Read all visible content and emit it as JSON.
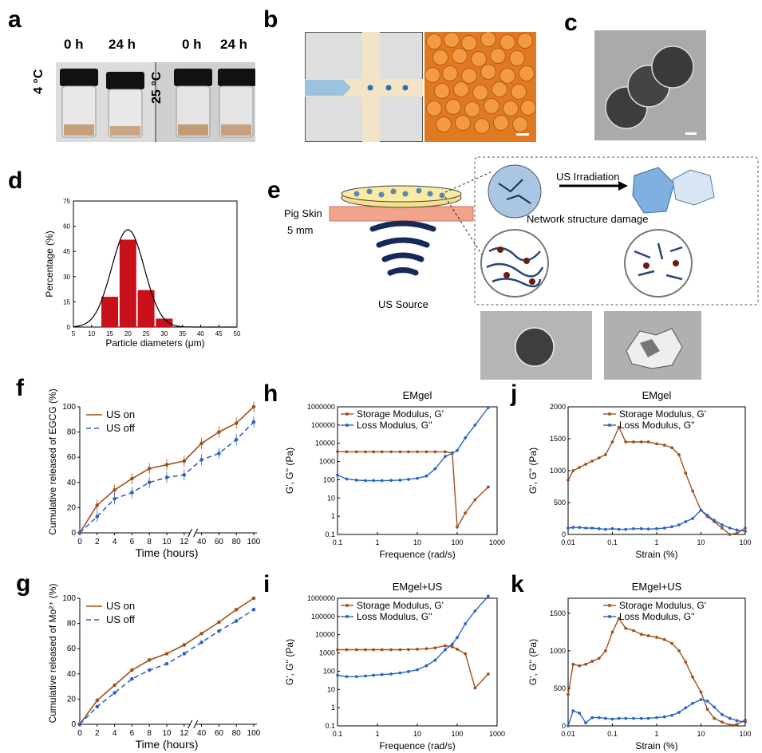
{
  "panels": {
    "a": {
      "letter": "a",
      "t0": "0 h",
      "t24": "24 h",
      "t0b": "0 h",
      "t24b": "24 h",
      "temp1": "4 °C",
      "temp2": "25 °C"
    },
    "b": {
      "letter": "b"
    },
    "c": {
      "letter": "c"
    },
    "d": {
      "letter": "d"
    },
    "e": {
      "letter": "e",
      "pig_skin": "Pig Skin",
      "depth": "5 mm",
      "us_source": "US Source",
      "irradiation": "US Irradiation",
      "damage": "Network structure damage"
    },
    "f": {
      "letter": "f"
    },
    "g": {
      "letter": "g"
    },
    "h": {
      "letter": "h"
    },
    "i": {
      "letter": "i"
    },
    "j": {
      "letter": "j"
    },
    "k": {
      "letter": "k"
    }
  },
  "chart_data": [
    {
      "id": "d",
      "type": "bar",
      "xlabel": "Particle diameters (μm)",
      "ylabel": "Percentage (%)",
      "xlim": [
        5,
        50
      ],
      "ylim": [
        0,
        75
      ],
      "xticks": [
        "5",
        "10",
        "15",
        "20",
        "25",
        "30",
        "35",
        "40",
        "45",
        "50"
      ],
      "yticks": [
        "0",
        "15",
        "30",
        "45",
        "60",
        "75"
      ],
      "categories": [
        15,
        20,
        25,
        30
      ],
      "values": [
        18,
        52,
        22,
        5
      ],
      "fit": {
        "type": "gaussian",
        "mean": 20,
        "sigma": 4.5,
        "peak": 58
      }
    },
    {
      "id": "f",
      "type": "line",
      "xlabel": "Time (hours)",
      "ylabel": "Cumulative released of EGCG (%)",
      "ylim": [
        0,
        100
      ],
      "xticks": [
        "0",
        "2",
        "4",
        "6",
        "8",
        "10",
        "12",
        "40",
        "60",
        "80",
        "100"
      ],
      "yticks": [
        "0",
        "20",
        "40",
        "60",
        "80",
        "100"
      ],
      "x": [
        0,
        2,
        4,
        6,
        8,
        10,
        12,
        40,
        60,
        80,
        100
      ],
      "series": [
        {
          "name": "US on",
          "values": [
            0,
            22,
            34,
            43,
            51,
            54,
            57,
            71,
            80,
            87,
            100
          ]
        },
        {
          "name": "US off",
          "values": [
            0,
            13,
            27,
            32,
            40,
            44,
            46,
            58,
            63,
            74,
            88
          ]
        }
      ]
    },
    {
      "id": "g",
      "type": "line",
      "xlabel": "Time (hours)",
      "ylabel": "Cumulative released of Mo²⁺ (%)",
      "ylim": [
        0,
        100
      ],
      "xticks": [
        "0",
        "2",
        "4",
        "6",
        "8",
        "10",
        "12",
        "40",
        "60",
        "80",
        "100"
      ],
      "yticks": [
        "0",
        "20",
        "40",
        "60",
        "80",
        "100"
      ],
      "x": [
        0,
        2,
        4,
        6,
        8,
        10,
        12,
        40,
        60,
        80,
        100
      ],
      "series": [
        {
          "name": "US on",
          "values": [
            0,
            19,
            31,
            43,
            51,
            56,
            63,
            72,
            81,
            91,
            100
          ]
        },
        {
          "name": "US off",
          "values": [
            0,
            14,
            25,
            36,
            43,
            48,
            56,
            65,
            74,
            82,
            91
          ]
        }
      ]
    },
    {
      "id": "h",
      "type": "line",
      "title": "EMgel",
      "xlabel": "Frequence (rad/s)",
      "ylabel": "G', G'' (Pa)",
      "xscale": "log",
      "yscale": "log",
      "xlim": [
        0.1,
        1000
      ],
      "ylim": [
        0.1,
        1000000
      ],
      "xticks": [
        "0.1",
        "1",
        "10",
        "100",
        "1000"
      ],
      "yticks": [
        "0.1",
        "1",
        "10",
        "100",
        "1000",
        "10000",
        "100000",
        "1000000"
      ],
      "x": [
        0.1,
        0.17,
        0.3,
        0.5,
        0.8,
        1.3,
        2.2,
        3.7,
        6,
        10,
        17,
        28,
        50,
        75,
        100,
        160,
        280,
        600
      ],
      "series": [
        {
          "name": "Storage Modulus, G'",
          "values": [
            3500,
            3400,
            3400,
            3400,
            3400,
            3400,
            3400,
            3400,
            3400,
            3400,
            3400,
            3400,
            3400,
            3000,
            0.25,
            1.5,
            8,
            40
          ]
        },
        {
          "name": "Loss Modulus, G''",
          "values": [
            180,
            110,
            95,
            90,
            90,
            90,
            92,
            95,
            105,
            120,
            160,
            400,
            1900,
            2800,
            4000,
            20000,
            100000,
            900000
          ]
        }
      ]
    },
    {
      "id": "i",
      "type": "line",
      "title": "EMgel+US",
      "xlabel": "Frequence (rad/s)",
      "ylabel": "G', G'' (Pa)",
      "xscale": "log",
      "yscale": "log",
      "xlim": [
        0.1,
        1000
      ],
      "ylim": [
        0.1,
        1000000
      ],
      "xticks": [
        "0.1",
        "1",
        "10",
        "100",
        "1000"
      ],
      "yticks": [
        "0.1",
        "1",
        "10",
        "100",
        "1000",
        "10000",
        "100000",
        "1000000"
      ],
      "x": [
        0.1,
        0.17,
        0.3,
        0.5,
        0.8,
        1.3,
        2.2,
        3.7,
        6,
        10,
        17,
        28,
        50,
        75,
        100,
        160,
        280,
        600
      ],
      "series": [
        {
          "name": "Storage Modulus, G'",
          "values": [
            1500,
            1500,
            1500,
            1500,
            1500,
            1500,
            1500,
            1500,
            1550,
            1600,
            1700,
            1900,
            2500,
            2200,
            1600,
            900,
            12,
            70
          ]
        },
        {
          "name": "Loss Modulus, G''",
          "values": [
            60,
            50,
            50,
            55,
            60,
            65,
            70,
            80,
            95,
            120,
            200,
            400,
            1500,
            3000,
            7000,
            40000,
            200000,
            1300000
          ]
        }
      ]
    },
    {
      "id": "j",
      "type": "line",
      "title": "EMgel",
      "xlabel": "Strain (%)",
      "ylabel": "G', G'' (Pa)",
      "xscale": "log",
      "xlim": [
        0.01,
        100
      ],
      "ylim": [
        0,
        2000
      ],
      "xticks": [
        "0.01",
        "0.1",
        "1",
        "10",
        "100"
      ],
      "yticks": [
        "0",
        "500",
        "1000",
        "1500",
        "2000"
      ],
      "x": [
        0.01,
        0.013,
        0.018,
        0.025,
        0.035,
        0.05,
        0.07,
        0.1,
        0.14,
        0.2,
        0.3,
        0.45,
        0.65,
        1,
        1.5,
        2.2,
        3.2,
        4.5,
        6.5,
        10,
        14,
        20,
        30,
        45,
        65,
        100
      ],
      "series": [
        {
          "name": "Storage Modulus, G'",
          "values": [
            850,
            1000,
            1050,
            1100,
            1150,
            1200,
            1250,
            1450,
            1680,
            1450,
            1450,
            1450,
            1450,
            1420,
            1400,
            1360,
            1250,
            960,
            680,
            380,
            280,
            200,
            100,
            0,
            20,
            100
          ]
        },
        {
          "name": "Loss Modulus, G''",
          "values": [
            100,
            110,
            110,
            100,
            100,
            90,
            80,
            90,
            80,
            80,
            90,
            90,
            85,
            90,
            100,
            120,
            150,
            200,
            250,
            380,
            300,
            220,
            150,
            100,
            70,
            50
          ]
        }
      ]
    },
    {
      "id": "k",
      "type": "line",
      "title": "EMgel+US",
      "xlabel": "Strain (%)",
      "ylabel": "G', G'' (Pa)",
      "xscale": "log",
      "xlim": [
        0.01,
        100
      ],
      "ylim": [
        0,
        1700
      ],
      "xticks": [
        "0.01",
        "0.1",
        "1",
        "10",
        "100"
      ],
      "yticks": [
        "0",
        "500",
        "1000",
        "1500"
      ],
      "x": [
        0.01,
        0.013,
        0.018,
        0.025,
        0.035,
        0.05,
        0.07,
        0.1,
        0.14,
        0.2,
        0.3,
        0.45,
        0.65,
        1,
        1.5,
        2.2,
        3.2,
        4.5,
        6.5,
        10,
        14,
        20,
        30,
        45,
        65,
        100
      ],
      "series": [
        {
          "name": "Storage Modulus, G'",
          "values": [
            420,
            820,
            800,
            820,
            860,
            900,
            1000,
            1250,
            1430,
            1300,
            1270,
            1220,
            1200,
            1180,
            1150,
            1100,
            1000,
            850,
            650,
            450,
            220,
            100,
            50,
            10,
            20,
            80
          ]
        },
        {
          "name": "Loss Modulus, G''",
          "values": [
            0,
            200,
            170,
            40,
            110,
            110,
            100,
            90,
            100,
            100,
            100,
            100,
            100,
            110,
            120,
            140,
            180,
            240,
            300,
            350,
            330,
            250,
            150,
            100,
            70,
            50
          ]
        }
      ]
    }
  ],
  "colors": {
    "on": "#a0521d",
    "off": "#2a65c4",
    "bar": "#c8101a",
    "black": "#000000"
  }
}
